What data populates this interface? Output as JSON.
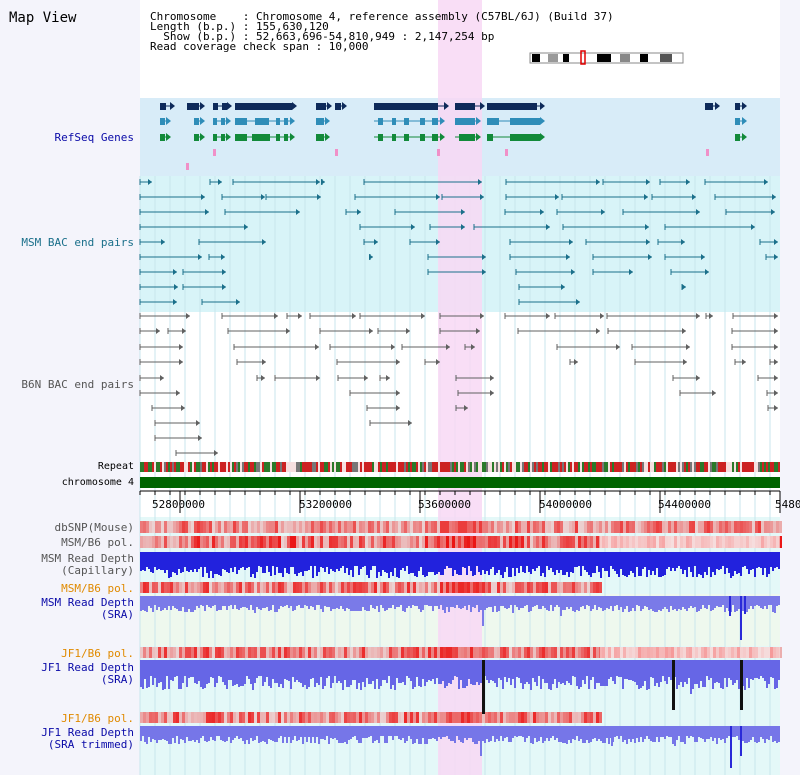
{
  "page_title": "Map View",
  "info": {
    "line1": "Chromosome    : Chromosome 4, reference assembly (C57BL/6J) (Build 37)",
    "line2": "Length (b.p.) : 155,630,120",
    "line3": "  Show (b.p.) : 52,663,696-54,810,949 : 2,147,254 bp",
    "line4": "Read coverage check span : 10,000"
  },
  "tracks": {
    "refseq": "RefSeq Genes",
    "msm_bac": "MSM BAC end pairs",
    "b6n_bac": "B6N BAC end pairs",
    "repeat": "Repeat",
    "chromosome": "chromosome 4",
    "dbsnp": "dbSNP(Mouse)",
    "msm_b6_pol_1": "MSM/B6 pol.",
    "msm_read_depth_cap_1": "MSM Read Depth",
    "msm_read_depth_cap_2": "(Capillary)",
    "msm_b6_pol_2": "MSM/B6 pol.",
    "msm_read_depth_sra_1": "MSM Read Depth",
    "msm_read_depth_sra_2": "(SRA)",
    "jf1_b6_pol_1": "JF1/B6 pol.",
    "jf1_read_depth_sra_1": "JF1 Read Depth",
    "jf1_read_depth_sra_2": "(SRA)",
    "jf1_b6_pol_2": "JF1/B6 pol.",
    "jf1_read_depth_trim_1": "JF1 Read Depth",
    "jf1_read_depth_trim_2": "(SRA trimmed)"
  },
  "ruler_ticks": [
    "52800000",
    "53200000",
    "53600000",
    "54000000",
    "54400000",
    "5480"
  ],
  "colors": {
    "highlight": "#f8d8f4",
    "refseq_bg": "#d8ecf8",
    "msm_bg": "#d8f4f8",
    "navy": "#0e2a5a",
    "teal": "#1a6f8a",
    "green": "#128a3a",
    "chrom_green": "#006400",
    "label_blue": "#0a0aa8",
    "label_orange": "#e08a00"
  }
}
